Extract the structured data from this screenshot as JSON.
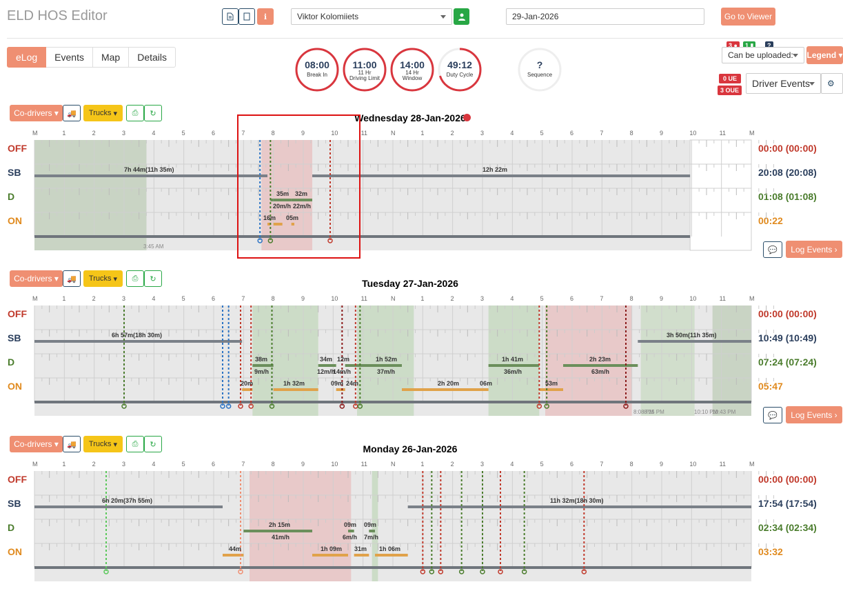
{
  "header": {
    "app_title": "ELD HOS Editor",
    "driver_name": "Viktor Kolomiiets",
    "date": "29-Jan-2026",
    "go_to_viewer": "Go to Viewer"
  },
  "nav": {
    "tabs": [
      {
        "label": "eLog",
        "active": true
      },
      {
        "label": "Events",
        "active": false
      },
      {
        "label": "Map",
        "active": false
      },
      {
        "label": "Details",
        "active": false
      }
    ]
  },
  "gauges": [
    {
      "value": "08:00",
      "sub1": "Break In",
      "sub2": "",
      "progress": 1.0
    },
    {
      "value": "11:00",
      "sub1": "11 Hr",
      "sub2": "Driving Limit",
      "progress": 1.0
    },
    {
      "value": "14:00",
      "sub1": "14 Hr",
      "sub2": "Window",
      "progress": 1.0
    },
    {
      "value": "49:12",
      "sub1": "Duty Cycle",
      "sub2": "",
      "progress": 0.7
    },
    {
      "value": "?",
      "sub1": "Sequence",
      "sub2": "",
      "progress": 0
    }
  ],
  "right_panel": {
    "badge_red": "3",
    "badge_green": "1",
    "badge_dark": "?",
    "upload_select": "Can be uploaded:",
    "legend": "Legend",
    "ue_badge": "0 UE",
    "oue_badge": "3 OUE",
    "driver_events_select": "Driver Events"
  },
  "controls": {
    "co_drivers": "Co-drivers",
    "trucks": "Trucks",
    "log_events": "Log Events"
  },
  "hour_labels": [
    "M",
    "1",
    "2",
    "3",
    "4",
    "5",
    "6",
    "7",
    "8",
    "9",
    "10",
    "11",
    "N",
    "1",
    "2",
    "3",
    "4",
    "5",
    "6",
    "7",
    "8",
    "9",
    "10",
    "11",
    "M"
  ],
  "status_labels": [
    "OFF",
    "SB",
    "D",
    "ON"
  ],
  "colors": {
    "accent": "#ef8f72",
    "off": "#c0392b",
    "sb": "#2a3e5c",
    "d": "#4a7c2c",
    "on": "#e08a1e",
    "sb_line": "#7a8088",
    "d_line": "#6b8f5b",
    "on_line": "#e0a24a"
  },
  "days": [
    {
      "title": "Wednesday 28-Jan-2026",
      "totals": [
        "00:00 (00:00)",
        "20:08 (20:08)",
        "01:08 (01:08)",
        "00:22"
      ],
      "segment_labels": [
        {
          "text": "7h 44m(11h 35m)"
        },
        {
          "text": "12h 22m"
        },
        {
          "text": "35m"
        },
        {
          "text": "32m"
        },
        {
          "text": "20m/h"
        },
        {
          "text": "22m/h"
        },
        {
          "text": "16m"
        },
        {
          "text": "05m"
        },
        {
          "text": "3:45 AM"
        }
      ]
    },
    {
      "title": "Tuesday 27-Jan-2026",
      "totals": [
        "00:00 (00:00)",
        "10:49 (10:49)",
        "07:24 (07:24)",
        "05:47"
      ],
      "segment_labels": [
        {
          "text": "6h 57m(18h 30m)"
        },
        {
          "text": "3h 50m(11h 35m)"
        },
        {
          "text": "38m"
        },
        {
          "text": "34m"
        },
        {
          "text": "12m"
        },
        {
          "text": "1h 52m"
        },
        {
          "text": "1h 41m"
        },
        {
          "text": "2h 23m"
        },
        {
          "text": "9m/h"
        },
        {
          "text": "12m/h"
        },
        {
          "text": "14m/h"
        },
        {
          "text": "37m/h"
        },
        {
          "text": "36m/h"
        },
        {
          "text": "63m/h"
        },
        {
          "text": "20m"
        },
        {
          "text": "1h 32m"
        },
        {
          "text": "09m"
        },
        {
          "text": "24m"
        },
        {
          "text": "2h 20m"
        },
        {
          "text": "06m"
        },
        {
          "text": "53m"
        },
        {
          "text": "8:08 PM"
        },
        {
          "text": "8:25 PM"
        },
        {
          "text": "10:10 PM"
        },
        {
          "text": "10:43 PM"
        }
      ]
    },
    {
      "title": "Monday 26-Jan-2026",
      "totals": [
        "00:00 (00:00)",
        "17:54 (17:54)",
        "02:34 (02:34)",
        "03:32"
      ],
      "segment_labels": [
        {
          "text": "6h 20m(37h 55m)"
        },
        {
          "text": "11h 32m(18h 30m)"
        },
        {
          "text": "2h 15m"
        },
        {
          "text": "41m/h"
        },
        {
          "text": "09m"
        },
        {
          "text": "09m"
        },
        {
          "text": "6m/h"
        },
        {
          "text": "7m/h"
        },
        {
          "text": "44m"
        },
        {
          "text": "1h 09m"
        },
        {
          "text": "31m"
        },
        {
          "text": "1h 06m"
        }
      ]
    }
  ]
}
